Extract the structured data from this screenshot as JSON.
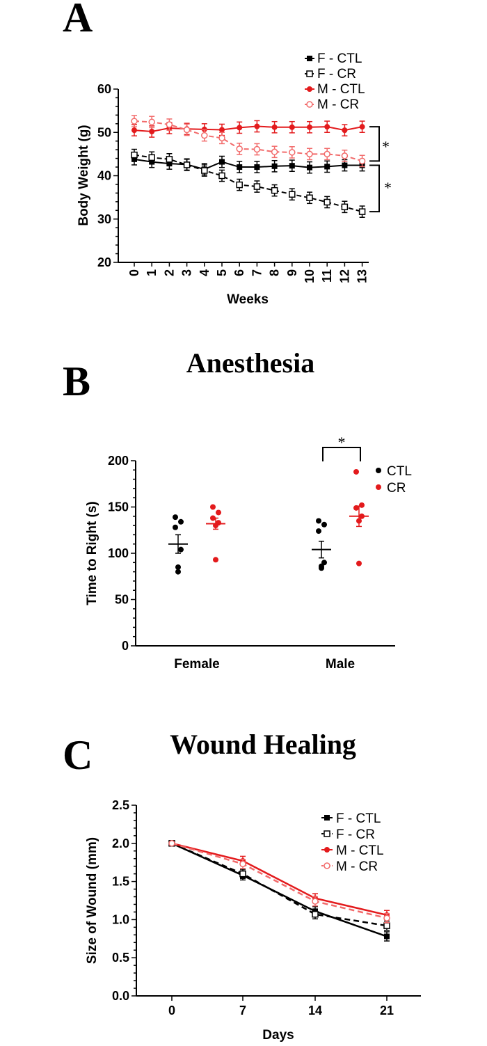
{
  "chart_data": [
    {
      "panel": "A",
      "type": "line",
      "title": "",
      "xlabel": "Weeks",
      "ylabel": "Body  Weight (g)",
      "ylim": [
        20,
        60
      ],
      "yticks": [
        "20",
        "30",
        "40",
        "50",
        "60"
      ],
      "x": [
        0,
        1,
        2,
        3,
        4,
        5,
        6,
        7,
        8,
        9,
        10,
        11,
        12,
        13
      ],
      "xticks": [
        "0",
        "1",
        "2",
        "3",
        "4",
        "5",
        "6",
        "7",
        "8",
        "9",
        "10",
        "11",
        "12",
        "13"
      ],
      "series": [
        {
          "name": "F - CTL",
          "color": "#000000",
          "dashed": false,
          "marker": "filled-square",
          "values": [
            43.8,
            43.2,
            42.8,
            42.6,
            41.5,
            43.2,
            42.0,
            42.0,
            42.2,
            42.3,
            41.9,
            42.1,
            42.4,
            42.4
          ]
        },
        {
          "name": "F -  CR",
          "color": "#000000",
          "dashed": true,
          "marker": "open-square",
          "values": [
            44.8,
            44.2,
            43.8,
            42.5,
            41.2,
            40.0,
            37.9,
            37.5,
            36.6,
            35.7,
            34.9,
            33.9,
            32.8,
            31.7
          ]
        },
        {
          "name": "M - CTL",
          "color": "#e31a1c",
          "dashed": false,
          "marker": "filled-circle",
          "values": [
            50.5,
            50.2,
            51.0,
            50.8,
            50.7,
            50.6,
            51.1,
            51.4,
            51.2,
            51.2,
            51.2,
            51.3,
            50.5,
            51.3
          ]
        },
        {
          "name": "M -  CR",
          "color": "#f26b6b",
          "dashed": true,
          "marker": "open-circle",
          "values": [
            52.6,
            52.4,
            51.8,
            50.6,
            49.3,
            48.7,
            46.2,
            46.1,
            45.5,
            45.4,
            45.0,
            45.0,
            44.6,
            43.4
          ]
        }
      ],
      "annotations": [
        "*",
        "*"
      ]
    },
    {
      "panel": "B",
      "type": "scatter",
      "title": "Anesthesia",
      "xlabel": "",
      "ylabel": "Time to Right  (s)",
      "ylim": [
        0,
        200
      ],
      "yticks": [
        "0",
        "50",
        "100",
        "150",
        "200"
      ],
      "categories": [
        "Female",
        "Male"
      ],
      "series": [
        {
          "name": "CTL",
          "color": "#000000",
          "points": [
            [
              139,
              134,
              128,
              104,
              85,
              80
            ],
            [
              135,
              131,
              124,
              90,
              86,
              84
            ]
          ],
          "means": [
            110,
            104
          ],
          "sem": [
            10,
            9
          ]
        },
        {
          "name": "CR",
          "color": "#e31a1c",
          "points": [
            [
              150,
              144,
              138,
              133,
              130,
              93
            ],
            [
              188,
              152,
              149,
              140,
              135,
              89
            ]
          ],
          "means": [
            132,
            140
          ],
          "sem": [
            6,
            11
          ]
        }
      ],
      "annotations": [
        "*"
      ]
    },
    {
      "panel": "C",
      "type": "line",
      "title": "Wound Healing",
      "xlabel": "Days",
      "ylabel": "Size of Wound (mm)",
      "ylim": [
        0,
        2.5
      ],
      "yticks": [
        "0.0",
        "0.5",
        "1.0",
        "1.5",
        "2.0",
        "2.5"
      ],
      "x": [
        0,
        7,
        14,
        21
      ],
      "xticks": [
        "0",
        "7",
        "14",
        "21"
      ],
      "series": [
        {
          "name": "F - CTL",
          "color": "#000000",
          "dashed": false,
          "marker": "filled-square",
          "values": [
            2.0,
            1.58,
            1.11,
            0.78
          ]
        },
        {
          "name": "F -  CR",
          "color": "#000000",
          "dashed": true,
          "marker": "open-square",
          "values": [
            2.0,
            1.6,
            1.07,
            0.92
          ]
        },
        {
          "name": "M - CTL",
          "color": "#e31a1c",
          "dashed": false,
          "marker": "filled-circle",
          "values": [
            2.0,
            1.77,
            1.28,
            1.06
          ]
        },
        {
          "name": "M -  CR",
          "color": "#f26b6b",
          "dashed": true,
          "marker": "open-circle",
          "values": [
            2.0,
            1.73,
            1.24,
            1.02
          ]
        }
      ]
    }
  ]
}
